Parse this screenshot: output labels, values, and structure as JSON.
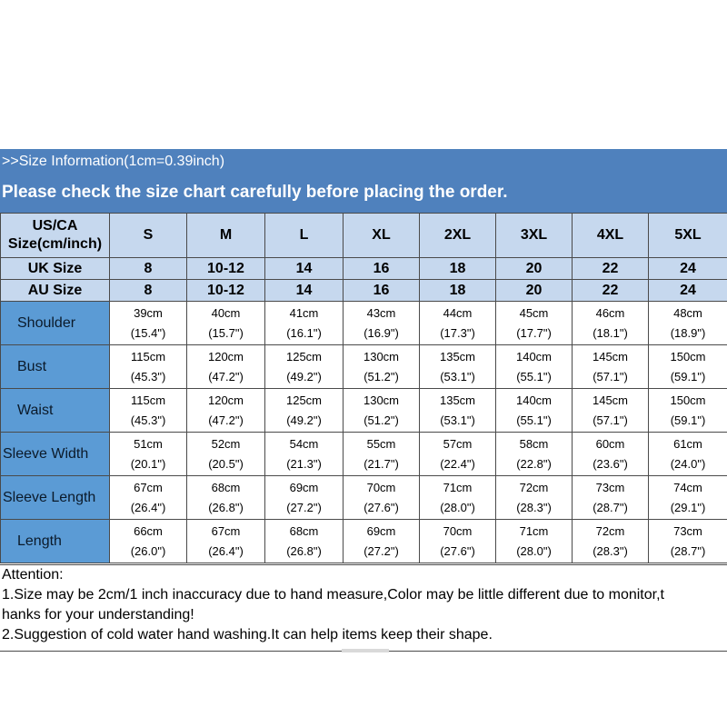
{
  "header": {
    "info": ">>Size Information(1cm=0.39inch)",
    "notice": "Please check the size chart carefully before placing the order."
  },
  "table": {
    "us_label_line1": "US/CA",
    "us_label_line2": "Size(cm/inch)",
    "sizes": [
      "S",
      "M",
      "L",
      "XL",
      "2XL",
      "3XL",
      "4XL",
      "5XL"
    ],
    "uk_label": "UK Size",
    "uk": [
      "8",
      "10-12",
      "14",
      "16",
      "18",
      "20",
      "22",
      "24"
    ],
    "au_label": "AU Size",
    "au": [
      "8",
      "10-12",
      "14",
      "16",
      "18",
      "20",
      "22",
      "24"
    ],
    "rows": [
      {
        "label": "Shoulder",
        "cm": [
          "39cm",
          "40cm",
          "41cm",
          "43cm",
          "44cm",
          "45cm",
          "46cm",
          "48cm"
        ],
        "inch": [
          "(15.4\")",
          "(15.7\")",
          "(16.1\")",
          "(16.9\")",
          "(17.3\")",
          "(17.7\")",
          "(18.1\")",
          "(18.9\")"
        ]
      },
      {
        "label": "Bust",
        "cm": [
          "115cm",
          "120cm",
          "125cm",
          "130cm",
          "135cm",
          "140cm",
          "145cm",
          "150cm"
        ],
        "inch": [
          "(45.3\")",
          "(47.2\")",
          "(49.2\")",
          "(51.2\")",
          "(53.1\")",
          "(55.1\")",
          "(57.1\")",
          "(59.1\")"
        ]
      },
      {
        "label": "Waist",
        "cm": [
          "115cm",
          "120cm",
          "125cm",
          "130cm",
          "135cm",
          "140cm",
          "145cm",
          "150cm"
        ],
        "inch": [
          "(45.3\")",
          "(47.2\")",
          "(49.2\")",
          "(51.2\")",
          "(53.1\")",
          "(55.1\")",
          "(57.1\")",
          "(59.1\")"
        ]
      },
      {
        "label": "Sleeve Width",
        "cm": [
          "51cm",
          "52cm",
          "54cm",
          "55cm",
          "57cm",
          "58cm",
          "60cm",
          "61cm"
        ],
        "inch": [
          "(20.1\")",
          "(20.5\")",
          "(21.3\")",
          "(21.7\")",
          "(22.4\")",
          "(22.8\")",
          "(23.6\")",
          "(24.0\")"
        ]
      },
      {
        "label": "Sleeve Length",
        "cm": [
          "67cm",
          "68cm",
          "69cm",
          "70cm",
          "71cm",
          "72cm",
          "73cm",
          "74cm"
        ],
        "inch": [
          "(26.4\")",
          "(26.8\")",
          "(27.2\")",
          "(27.6\")",
          "(28.0\")",
          "(28.3\")",
          "(28.7\")",
          "(29.1\")"
        ]
      },
      {
        "label": "Length",
        "cm": [
          "66cm",
          "67cm",
          "68cm",
          "69cm",
          "70cm",
          "71cm",
          "72cm",
          "73cm"
        ],
        "inch": [
          "(26.0\")",
          "(26.4\")",
          "(26.8\")",
          "(27.2\")",
          "(27.6\")",
          "(28.0\")",
          "(28.3\")",
          "(28.7\")"
        ]
      }
    ]
  },
  "attention": {
    "title": "Attention:",
    "line1a": "1.Size may be 2cm/1 inch inaccuracy due to hand measure,Color may be little different due to monitor,t",
    "line1b": "hanks for your understanding!",
    "line2": "2.Suggestion of cold water hand washing.It can help items keep their shape."
  },
  "colors": {
    "header_blue": "#4f81bd",
    "label_blue": "#5b9bd5",
    "header_light": "#c6d8ee"
  }
}
